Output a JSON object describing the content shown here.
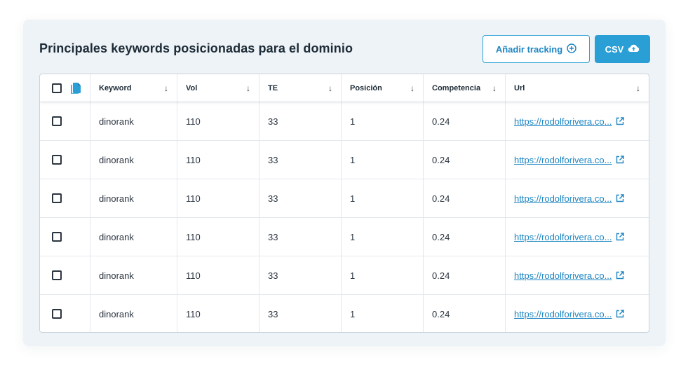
{
  "title": "Principales keywords posicionadas para el dominio",
  "buttons": {
    "tracking_label": "Añadir tracking",
    "csv_label": "CSV"
  },
  "columns": [
    "Keyword",
    "Vol",
    "TE",
    "Posición",
    "Competencia",
    "Url"
  ],
  "rows": [
    {
      "keyword": "dinorank",
      "vol": "110",
      "te": "33",
      "posicion": "1",
      "competencia": "0.24",
      "url": "https://rodolforivera.co..."
    },
    {
      "keyword": "dinorank",
      "vol": "110",
      "te": "33",
      "posicion": "1",
      "competencia": "0.24",
      "url": "https://rodolforivera.co..."
    },
    {
      "keyword": "dinorank",
      "vol": "110",
      "te": "33",
      "posicion": "1",
      "competencia": "0.24",
      "url": "https://rodolforivera.co..."
    },
    {
      "keyword": "dinorank",
      "vol": "110",
      "te": "33",
      "posicion": "1",
      "competencia": "0.24",
      "url": "https://rodolforivera.co..."
    },
    {
      "keyword": "dinorank",
      "vol": "110",
      "te": "33",
      "posicion": "1",
      "competencia": "0.24",
      "url": "https://rodolforivera.co..."
    },
    {
      "keyword": "dinorank",
      "vol": "110",
      "te": "33",
      "posicion": "1",
      "competencia": "0.24",
      "url": "https://rodolforivera.co..."
    }
  ],
  "sort_glyph": "↓",
  "icons": {
    "copy": "copy-icon",
    "plus_circle": "plus-circle-icon",
    "cloud_upload": "cloud-upload-icon",
    "sort": "sort-down-arrow-icon",
    "external_link": "external-link-icon"
  },
  "colors": {
    "accent": "#2a9fd6",
    "link": "#1f86c2",
    "panel_bg": "#eef3f7",
    "border": "#c9d3dc"
  }
}
